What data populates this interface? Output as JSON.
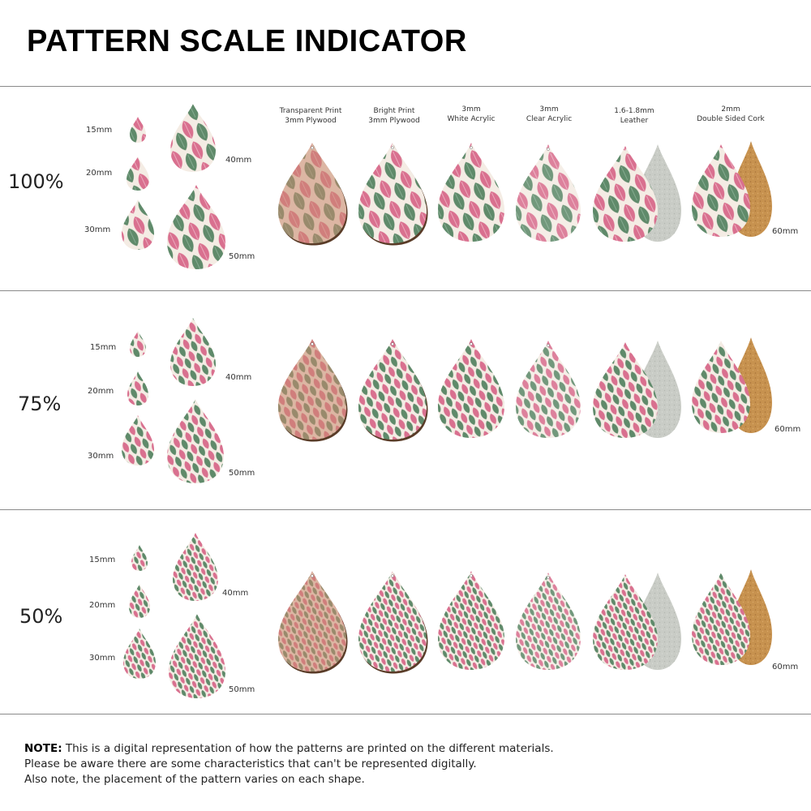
{
  "header": {
    "title": "PATTERN SCALE INDICATOR"
  },
  "materials": [
    {
      "line1": "Transparent Print",
      "line2": "3mm Plywood"
    },
    {
      "line1": "Bright Print",
      "line2": "3mm Plywood"
    },
    {
      "line1": "3mm",
      "line2": "White Acrylic"
    },
    {
      "line1": "3mm",
      "line2": "Clear Acrylic"
    },
    {
      "line1": "1.6-1.8mm",
      "line2": "Leather"
    },
    {
      "line1": "2mm",
      "line2": "Double Sided Cork"
    }
  ],
  "sections": [
    {
      "scale": "100%",
      "sizes": {
        "s15": "15mm",
        "s20": "20mm",
        "s30": "30mm",
        "s40": "40mm",
        "s50": "50mm",
        "s60": "60mm"
      }
    },
    {
      "scale": "75%",
      "sizes": {
        "s15": "15mm",
        "s20": "20mm",
        "s30": "30mm",
        "s40": "40mm",
        "s50": "50mm",
        "s60": "60mm"
      }
    },
    {
      "scale": "50%",
      "sizes": {
        "s15": "15mm",
        "s20": "20mm",
        "s30": "30mm",
        "s40": "40mm",
        "s50": "50mm",
        "s60": "60mm"
      }
    }
  ],
  "note": {
    "bold": "NOTE:",
    "line1": " This is a digital representation of how the patterns are printed on the different materials.",
    "line2": "Please be aware there are some characteristics that can't be represented digitally.",
    "line3": "Also note, the placement of the pattern varies on each shape."
  },
  "colors": {
    "pink": "#d9708f",
    "pink_light": "#f0b9c8",
    "green": "#5f8a6a",
    "cream": "#f4ece4",
    "wood": "#6b4a32",
    "plywood_tint": "#c98a6e",
    "suede": "#c9ccc6",
    "cork": "#c7924f"
  }
}
